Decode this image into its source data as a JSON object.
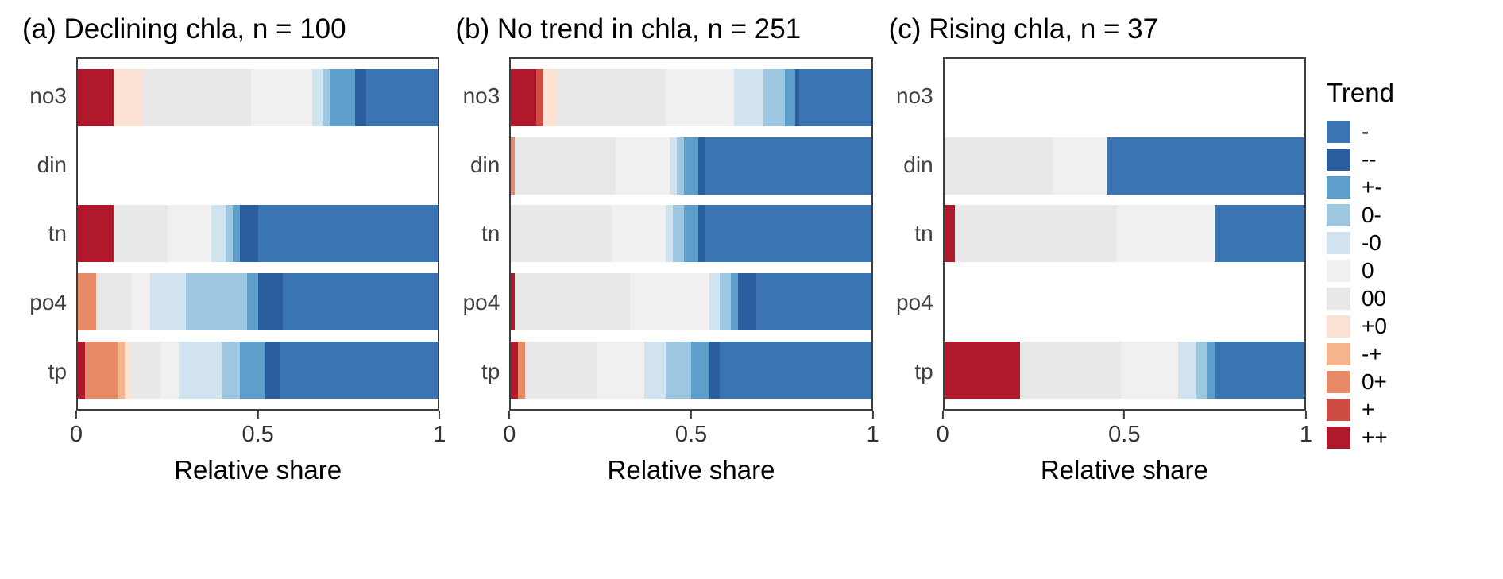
{
  "page": {
    "background": "#ffffff"
  },
  "legend": {
    "title": "Trend",
    "items": [
      {
        "label": "-",
        "color": "#3b74b2"
      },
      {
        "label": "--",
        "color": "#2b5e9f"
      },
      {
        "label": "+-",
        "color": "#5d9ecb"
      },
      {
        "label": "0-",
        "color": "#9dc6e0"
      },
      {
        "label": "-0",
        "color": "#d2e3f0"
      },
      {
        "label": "0",
        "color": "#f0f0f0"
      },
      {
        "label": "00",
        "color": "#e8e8e8"
      },
      {
        "label": "+0",
        "color": "#fbe2d2"
      },
      {
        "label": "-+",
        "color": "#f5b58c"
      },
      {
        "label": "0+",
        "color": "#e78a68"
      },
      {
        "label": "+",
        "color": "#cf4c45"
      },
      {
        "label": "++",
        "color": "#b2182b"
      }
    ]
  },
  "chart_data": {
    "type": "bar",
    "orientation": "horizontal",
    "stacked": true,
    "normalized": true,
    "categories": [
      "no3",
      "din",
      "tn",
      "po4",
      "tp"
    ],
    "xlabel": "Relative share",
    "xlim": [
      0,
      1
    ],
    "x_ticks": [
      "0",
      "0.5",
      "1"
    ],
    "x_tick_values": [
      0,
      0.5,
      1
    ],
    "grid": false,
    "legend_position": "right",
    "stack_order_left_to_right": [
      "++",
      "+",
      "0+",
      "-+",
      "+0",
      "00",
      "0",
      "-0",
      "0-",
      "+-",
      "--",
      "-"
    ],
    "panels": [
      {
        "title": "(a) Declining chla, n = 100",
        "n": 100,
        "bars": {
          "no3": [
            [
              "++",
              0.1
            ],
            [
              "+0",
              0.08
            ],
            [
              "00",
              0.3
            ],
            [
              "0",
              0.17
            ],
            [
              "-0",
              0.03
            ],
            [
              "0-",
              0.02
            ],
            [
              "+-",
              0.07
            ],
            [
              "--",
              0.03
            ],
            [
              "-",
              0.2
            ]
          ],
          "din": [],
          "tn": [
            [
              "++",
              0.1
            ],
            [
              "00",
              0.15
            ],
            [
              "0",
              0.12
            ],
            [
              "-0",
              0.04
            ],
            [
              "0-",
              0.02
            ],
            [
              "+-",
              0.02
            ],
            [
              "--",
              0.05
            ],
            [
              "-",
              0.5
            ]
          ],
          "po4": [
            [
              "0+",
              0.05
            ],
            [
              "00",
              0.1
            ],
            [
              "0",
              0.05
            ],
            [
              "-0",
              0.1
            ],
            [
              "0-",
              0.17
            ],
            [
              "+-",
              0.03
            ],
            [
              "--",
              0.07
            ],
            [
              "-",
              0.43
            ]
          ],
          "tp": [
            [
              "++",
              0.02
            ],
            [
              "0+",
              0.09
            ],
            [
              "-+",
              0.02
            ],
            [
              "+0",
              0.02
            ],
            [
              "00",
              0.08
            ],
            [
              "0",
              0.05
            ],
            [
              "-0",
              0.12
            ],
            [
              "0-",
              0.05
            ],
            [
              "+-",
              0.07
            ],
            [
              "--",
              0.04
            ],
            [
              "-",
              0.44
            ]
          ]
        }
      },
      {
        "title": "(b) No trend in chla, n = 251",
        "n": 251,
        "bars": {
          "no3": [
            [
              "++",
              0.07
            ],
            [
              "+",
              0.02
            ],
            [
              "+0",
              0.04
            ],
            [
              "00",
              0.3
            ],
            [
              "0",
              0.19
            ],
            [
              "-0",
              0.08
            ],
            [
              "0-",
              0.06
            ],
            [
              "+-",
              0.03
            ],
            [
              "--",
              0.01
            ],
            [
              "-",
              0.2
            ]
          ],
          "din": [
            [
              "0+",
              0.01
            ],
            [
              "00",
              0.28
            ],
            [
              "0",
              0.15
            ],
            [
              "-0",
              0.02
            ],
            [
              "0-",
              0.02
            ],
            [
              "+-",
              0.04
            ],
            [
              "--",
              0.02
            ],
            [
              "-",
              0.46
            ]
          ],
          "tn": [
            [
              "00",
              0.28
            ],
            [
              "0",
              0.15
            ],
            [
              "-0",
              0.02
            ],
            [
              "0-",
              0.03
            ],
            [
              "+-",
              0.04
            ],
            [
              "--",
              0.02
            ],
            [
              "-",
              0.46
            ]
          ],
          "po4": [
            [
              "++",
              0.01
            ],
            [
              "00",
              0.32
            ],
            [
              "0",
              0.22
            ],
            [
              "-0",
              0.03
            ],
            [
              "0-",
              0.03
            ],
            [
              "+-",
              0.02
            ],
            [
              "--",
              0.05
            ],
            [
              "-",
              0.32
            ]
          ],
          "tp": [
            [
              "++",
              0.02
            ],
            [
              "0+",
              0.02
            ],
            [
              "00",
              0.2
            ],
            [
              "0",
              0.13
            ],
            [
              "-0",
              0.06
            ],
            [
              "0-",
              0.07
            ],
            [
              "+-",
              0.05
            ],
            [
              "--",
              0.03
            ],
            [
              "-",
              0.42
            ]
          ]
        }
      },
      {
        "title": "(c) Rising chla, n = 37",
        "n": 37,
        "bars": {
          "no3": [],
          "din": [
            [
              "00",
              0.3
            ],
            [
              "0",
              0.15
            ],
            [
              "-",
              0.55
            ]
          ],
          "tn": [
            [
              "++",
              0.03
            ],
            [
              "00",
              0.45
            ],
            [
              "0",
              0.27
            ],
            [
              "-",
              0.25
            ]
          ],
          "po4": [],
          "tp": [
            [
              "++",
              0.21
            ],
            [
              "00",
              0.28
            ],
            [
              "0",
              0.16
            ],
            [
              "-0",
              0.05
            ],
            [
              "0-",
              0.03
            ],
            [
              "+-",
              0.02
            ],
            [
              "-",
              0.25
            ]
          ]
        }
      }
    ]
  }
}
